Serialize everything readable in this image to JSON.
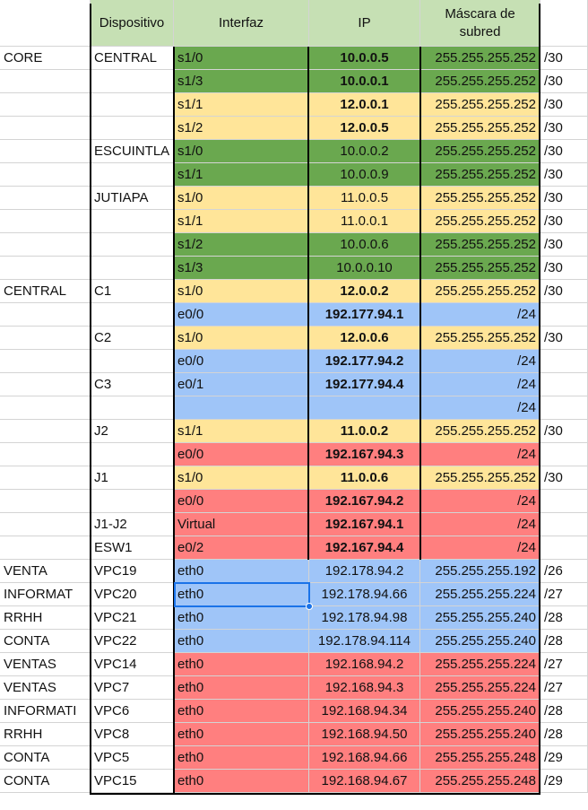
{
  "headers": {
    "dispositivo": "Dispositivo",
    "interfaz": "Interfaz",
    "ip": "IP",
    "mascara": "Máscara de subred"
  },
  "colors": {
    "green": "#6aa84f",
    "yellow": "#ffe599",
    "blue": "#9fc5f8",
    "red": "#ff7f7f",
    "header": "#c6e0b4",
    "white": "#ffffff"
  },
  "rows": [
    {
      "a": "CORE",
      "b": "CENTRAL",
      "c": "s1/0",
      "d": "10.0.0.5",
      "e": "255.255.255.252",
      "f": "/30",
      "color": "green",
      "bold": true
    },
    {
      "a": "",
      "b": "",
      "c": "s1/3",
      "d": "10.0.0.1",
      "e": "255.255.255.252",
      "f": "/30",
      "color": "green",
      "bold": true
    },
    {
      "a": "",
      "b": "",
      "c": "s1/1",
      "d": "12.0.0.1",
      "e": "255.255.255.252",
      "f": "/30",
      "color": "yellow",
      "bold": true
    },
    {
      "a": "",
      "b": "",
      "c": "s1/2",
      "d": "12.0.0.5",
      "e": "255.255.255.252",
      "f": "/30",
      "color": "yellow",
      "bold": true
    },
    {
      "a": "",
      "b": "ESCUINTLA",
      "c": "s1/0",
      "d": "10.0.0.2",
      "e": "255.255.255.252",
      "f": "/30",
      "color": "green",
      "bold": false
    },
    {
      "a": "",
      "b": "",
      "c": "s1/1",
      "d": "10.0.0.9",
      "e": "255.255.255.252",
      "f": "/30",
      "color": "green",
      "bold": false
    },
    {
      "a": "",
      "b": "JUTIAPA",
      "c": "s1/0",
      "d": "11.0.0.5",
      "e": "255.255.255.252",
      "f": "/30",
      "color": "yellow",
      "bold": false
    },
    {
      "a": "",
      "b": "",
      "c": "s1/1",
      "d": "11.0.0.1",
      "e": "255.255.255.252",
      "f": "/30",
      "color": "yellow",
      "bold": false
    },
    {
      "a": "",
      "b": "",
      "c": "s1/2",
      "d": "10.0.0.6",
      "e": "255.255.255.252",
      "f": "/30",
      "color": "green",
      "bold": false
    },
    {
      "a": "",
      "b": "",
      "c": "s1/3",
      "d": "10.0.0.10",
      "e": "255.255.255.252",
      "f": "/30",
      "color": "green",
      "bold": false
    },
    {
      "a": "CENTRAL",
      "b": "C1",
      "c": "s1/0",
      "d": "12.0.0.2",
      "e": "255.255.255.252",
      "f": "/30",
      "color": "yellow",
      "bold": true
    },
    {
      "a": "",
      "b": "",
      "c": "e0/0",
      "d": "192.177.94.1",
      "e": "/24",
      "f": "",
      "color": "blue",
      "bold": true
    },
    {
      "a": "",
      "b": "C2",
      "c": "s1/0",
      "d": "12.0.0.6",
      "e": "255.255.255.252",
      "f": "/30",
      "color": "yellow",
      "bold": true
    },
    {
      "a": "",
      "b": "",
      "c": "e0/0",
      "d": "192.177.94.2",
      "e": "/24",
      "f": "",
      "color": "blue",
      "bold": true
    },
    {
      "a": "",
      "b": "C3",
      "c": "e0/1",
      "d": "192.177.94.4",
      "e": "/24",
      "f": "",
      "color": "blue",
      "bold": true
    },
    {
      "a": "",
      "b": "",
      "c": "",
      "d": "",
      "e": "/24",
      "f": "",
      "color": "blue",
      "bold": true
    },
    {
      "a": "",
      "b": "J2",
      "c": "s1/1",
      "d": "11.0.0.2",
      "e": "255.255.255.252",
      "f": "/30",
      "color": "yellow",
      "bold": true
    },
    {
      "a": "",
      "b": "",
      "c": "e0/0",
      "d": "192.167.94.3",
      "e": "/24",
      "f": "",
      "color": "red",
      "bold": true
    },
    {
      "a": "",
      "b": "J1",
      "c": "s1/0",
      "d": "11.0.0.6",
      "e": "255.255.255.252",
      "f": "/30",
      "color": "yellow",
      "bold": true
    },
    {
      "a": "",
      "b": "",
      "c": "e0/0",
      "d": "192.167.94.2",
      "e": "/24",
      "f": "",
      "color": "red",
      "bold": true
    },
    {
      "a": "",
      "b": "J1-J2",
      "c": "Virtual",
      "d": "192.167.94.1",
      "e": "/24",
      "f": "",
      "color": "red",
      "bold": true
    },
    {
      "a": "",
      "b": "ESW1",
      "c": "e0/2",
      "d": "192.167.94.4",
      "e": "/24",
      "f": "",
      "color": "red",
      "bold": true
    },
    {
      "a": "VENTA",
      "b": "VPC19",
      "c": "eth0",
      "d": "192.178.94.2",
      "e": "255.255.255.192",
      "f": "/26",
      "color": "blue",
      "bold": false
    },
    {
      "a": "INFORMAT",
      "b": "VPC20",
      "c": "eth0",
      "d": "192.178.94.66",
      "e": "255.255.255.224",
      "f": "/27",
      "color": "blue",
      "bold": false
    },
    {
      "a": "RRHH",
      "b": "VPC21",
      "c": "eth0",
      "d": "192.178.94.98",
      "e": "255.255.255.240",
      "f": "/28",
      "color": "blue",
      "bold": false
    },
    {
      "a": "CONTA",
      "b": "VPC22",
      "c": "eth0",
      "d": "192.178.94.114",
      "e": "255.255.255.240",
      "f": "/28",
      "color": "blue",
      "bold": false
    },
    {
      "a": "VENTAS",
      "b": "VPC14",
      "c": "eth0",
      "d": "192.168.94.2",
      "e": "255.255.255.224",
      "f": "/27",
      "color": "red",
      "bold": false
    },
    {
      "a": "VENTAS",
      "b": "VPC7",
      "c": "eth0",
      "d": "192.168.94.3",
      "e": "255.255.255.224",
      "f": "/27",
      "color": "red",
      "bold": false
    },
    {
      "a": "INFORMATI",
      "b": "VPC6",
      "c": "eth0",
      "d": "192.168.94.34",
      "e": "255.255.255.240",
      "f": "/28",
      "color": "red",
      "bold": false
    },
    {
      "a": "RRHH",
      "b": "VPC8",
      "c": "eth0",
      "d": "192.168.94.50",
      "e": "255.255.255.240",
      "f": "/28",
      "color": "red",
      "bold": false
    },
    {
      "a": "CONTA",
      "b": "VPC5",
      "c": "eth0",
      "d": "192.168.94.66",
      "e": "255.255.255.248",
      "f": "/29",
      "color": "red",
      "bold": false
    },
    {
      "a": "CONTA",
      "b": "VPC15",
      "c": "eth0",
      "d": "192.168.94.67",
      "e": "255.255.255.248",
      "f": "/29",
      "color": "red",
      "bold": false
    }
  ]
}
